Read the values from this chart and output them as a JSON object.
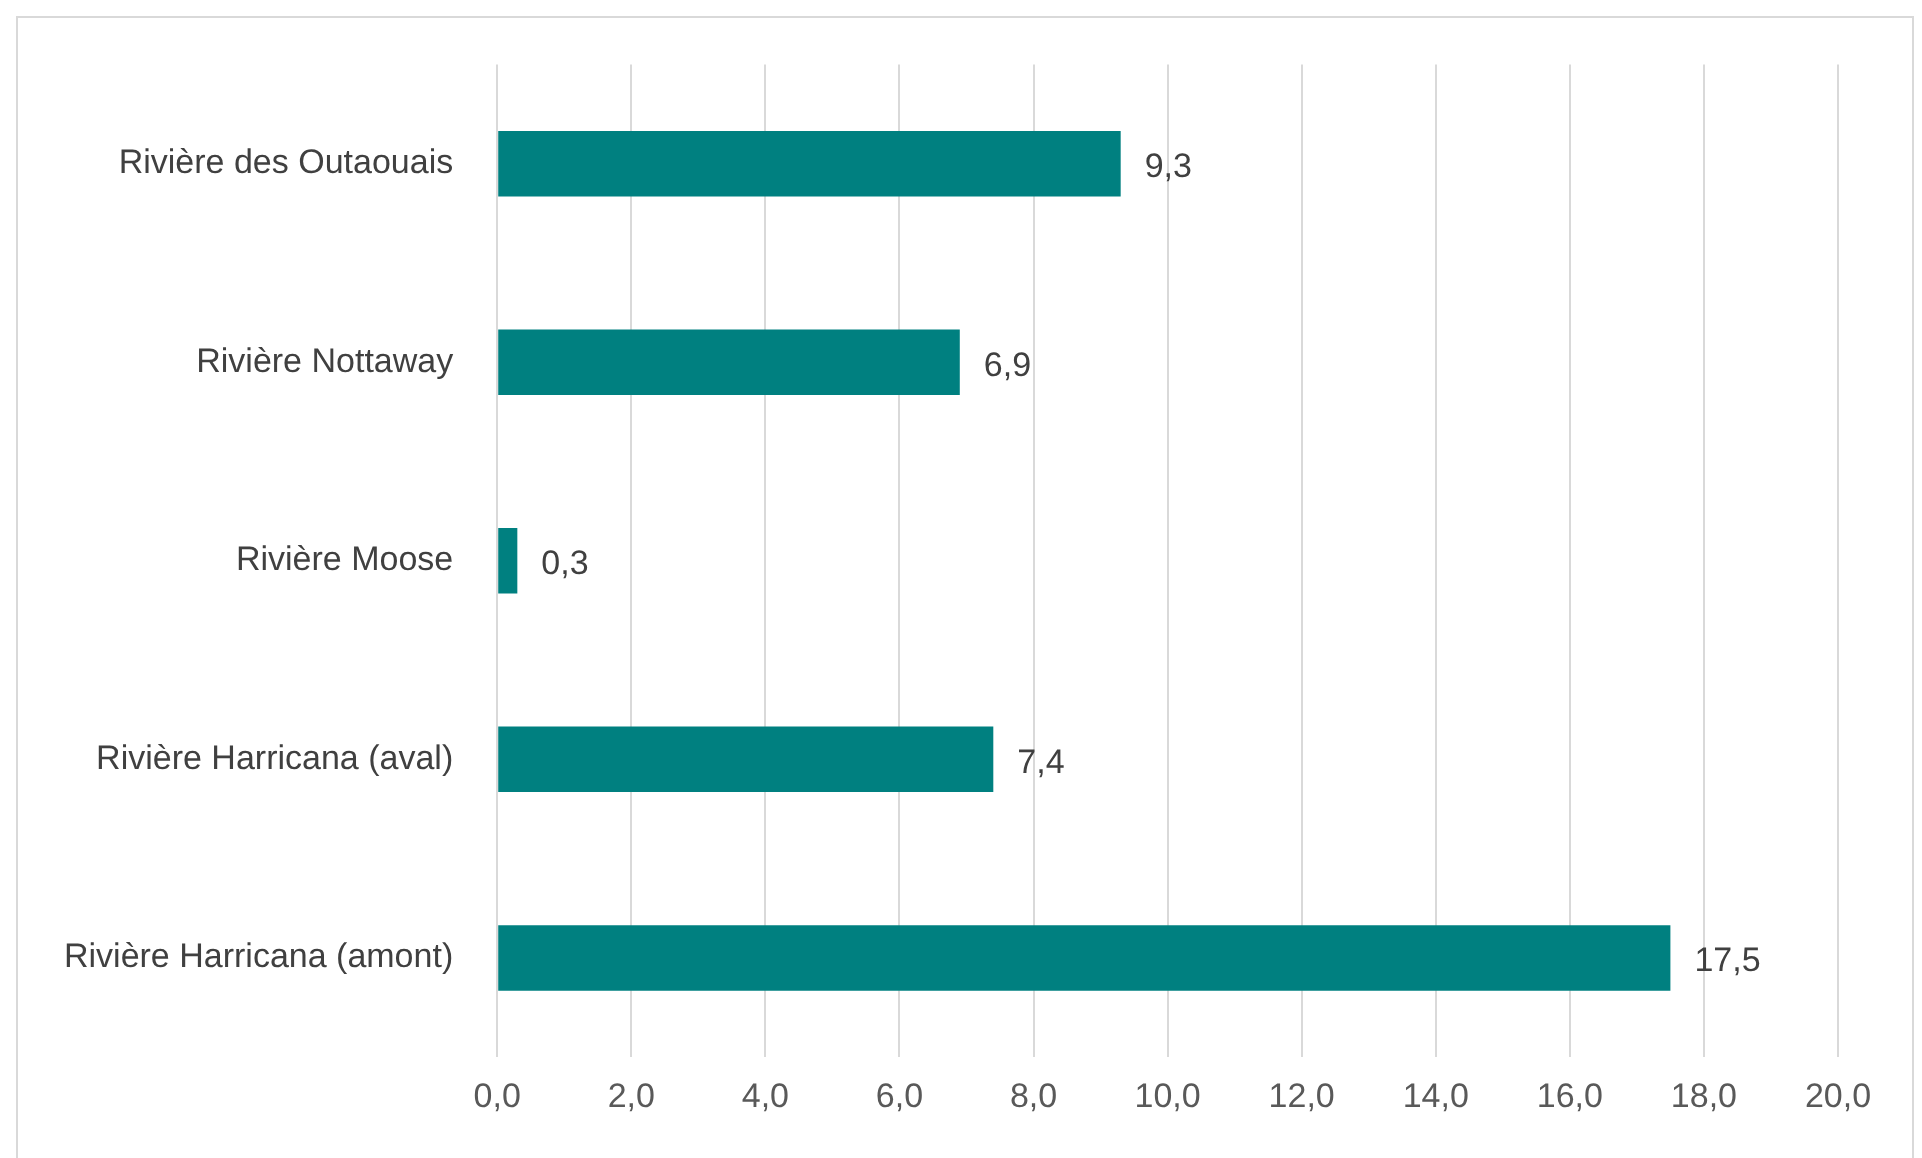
{
  "chart_data": {
    "type": "bar",
    "orientation": "horizontal",
    "categories": [
      "Rivière des Outaouais",
      "Rivière Nottaway",
      "Rivière Moose",
      "Rivière Harricana (aval)",
      "Rivière Harricana (amont)"
    ],
    "values": [
      9.3,
      6.9,
      0.3,
      7.4,
      17.5
    ],
    "value_labels": [
      "9,3",
      "6,9",
      "0,3",
      "7,4",
      "17,5"
    ],
    "color": "#008080",
    "xlim": [
      0,
      20
    ],
    "xticks": [
      {
        "value": 0,
        "label": "0,0"
      },
      {
        "value": 2,
        "label": "2,0"
      },
      {
        "value": 4,
        "label": "4,0"
      },
      {
        "value": 6,
        "label": "6,0"
      },
      {
        "value": 8,
        "label": "8,0"
      },
      {
        "value": 10,
        "label": "10,0"
      },
      {
        "value": 12,
        "label": "12,0"
      },
      {
        "value": 14,
        "label": "14,0"
      },
      {
        "value": 16,
        "label": "16,0"
      },
      {
        "value": 18,
        "label": "18,0"
      },
      {
        "value": 20,
        "label": "20,0"
      }
    ],
    "grid": "x",
    "legend": false
  }
}
